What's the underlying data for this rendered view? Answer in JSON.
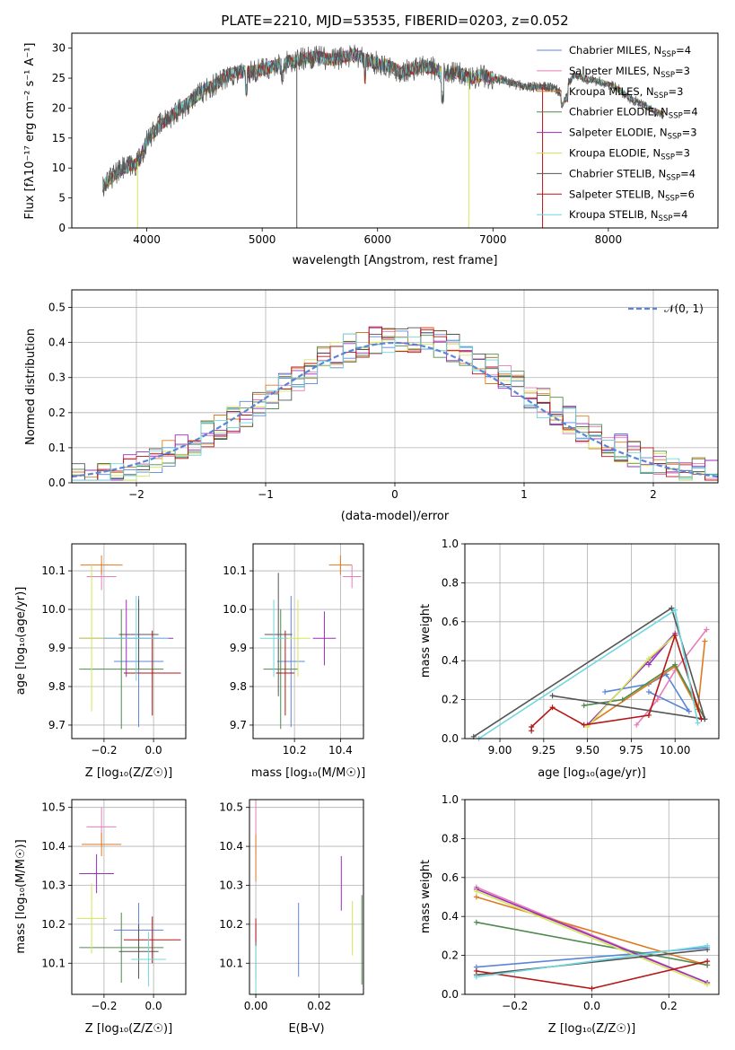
{
  "colors": {
    "chabrier_miles": "#5b86d8",
    "salpeter_miles": "#e87cb8",
    "kroupa_miles": "#e07a22",
    "chabrier_elodie": "#4f8a4f",
    "salpeter_elodie": "#9a2fb8",
    "kroupa_elodie": "#d2e65a",
    "chabrier_stelib": "#555555",
    "salpeter_stelib": "#b51616",
    "kroupa_stelib": "#6fd7de",
    "gaussian": "#5b86d8",
    "grid": "#b0b0b0"
  },
  "chart_data": [
    {
      "id": "spectrum",
      "type": "line",
      "title": "PLATE=2210, MJD=53535, FIBERID=0203, z=0.052",
      "xlabel": "wavelength [Angstrom, rest frame]",
      "ylabel": "Flux [fλ10⁻¹⁷ erg cm⁻² s⁻¹ A⁻¹]",
      "xlim": [
        3350,
        8950
      ],
      "ylim": [
        0,
        32.5
      ],
      "xticks": [
        "4000",
        "5000",
        "6000",
        "7000",
        "8000"
      ],
      "yticks": [
        "0",
        "5",
        "10",
        "15",
        "20",
        "25",
        "30"
      ],
      "grid": false,
      "legend_position": "top-right",
      "legend": [
        {
          "pre": "Chabrier MILES, N",
          "sub": "SSP",
          "post": "=4"
        },
        {
          "pre": "Salpeter MILES, N",
          "sub": "SSP",
          "post": "=3"
        },
        {
          "pre": "Kroupa MILES, N",
          "sub": "SSP",
          "post": "=3"
        },
        {
          "pre": "Chabrier ELODIE, N",
          "sub": "SSP",
          "post": "=4"
        },
        {
          "pre": "Salpeter ELODIE, N",
          "sub": "SSP",
          "post": "=3"
        },
        {
          "pre": "Kroupa ELODIE, N",
          "sub": "SSP",
          "post": "=3"
        },
        {
          "pre": "Chabrier STELIB, N",
          "sub": "SSP",
          "post": "=4"
        },
        {
          "pre": "Salpeter STELIB, N",
          "sub": "SSP",
          "post": "=6"
        },
        {
          "pre": "Kroupa STELIB, N",
          "sub": "SSP",
          "post": "=4"
        }
      ],
      "continuum": {
        "x": [
          3620,
          3700,
          3800,
          3900,
          3950,
          4000,
          4100,
          4200,
          4300,
          4400,
          4500,
          4600,
          4700,
          4800,
          4900,
          5000,
          5100,
          5200,
          5300,
          5400,
          5500,
          5600,
          5700,
          5800,
          5900,
          6000,
          6100,
          6200,
          6300,
          6400,
          6500,
          6600,
          6700,
          6800,
          6900,
          7000,
          7100,
          7200,
          7300,
          7400,
          7500,
          7600,
          7700,
          7800,
          7900,
          8000,
          8100,
          8200,
          8300,
          8400,
          8480
        ],
        "y": [
          7.0,
          8.5,
          10.0,
          10.5,
          12.0,
          14.5,
          17.0,
          18.5,
          20.0,
          21.5,
          23.0,
          24.0,
          25.5,
          26.0,
          26.0,
          26.5,
          27.0,
          27.5,
          28.0,
          28.5,
          28.5,
          28.0,
          28.5,
          29.0,
          28.0,
          27.5,
          27.0,
          26.0,
          26.5,
          27.0,
          26.5,
          25.5,
          26.0,
          25.0,
          25.5,
          25.0,
          24.5,
          24.0,
          23.5,
          23.5,
          23.5,
          22.5,
          25.5,
          25.0,
          24.5,
          24.0,
          23.0,
          21.5,
          20.5,
          19.5,
          19.0
        ]
      },
      "dips": [
        {
          "x": 3920,
          "y": 0
        },
        {
          "x": 5300,
          "y": 0
        },
        {
          "x": 6790,
          "y": 0
        },
        {
          "x": 7430,
          "y": 0
        }
      ]
    },
    {
      "id": "residuals",
      "type": "line",
      "xlabel": "(data-model)/error",
      "ylabel": "Normed distribution",
      "xlim": [
        -2.5,
        2.5
      ],
      "ylim": [
        0,
        0.55
      ],
      "xticks": [
        "−2",
        "−1",
        "0",
        "1",
        "2"
      ],
      "yticks": [
        "0.0",
        "0.1",
        "0.2",
        "0.3",
        "0.4",
        "0.5"
      ],
      "grid": true,
      "legend_position": "top-right",
      "legend": [
        "𝒩(0, 1)"
      ],
      "bin_width": 0.1,
      "bin_start": -2.5
    },
    {
      "id": "age_vs_Z",
      "type": "scatter",
      "xlabel": "Z [log₁₀(Z/Z☉)]",
      "ylabel": "age  [log₁₀(age/yr)]",
      "xlim": [
        -0.33,
        0.13
      ],
      "ylim": [
        9.665,
        10.17
      ],
      "xticks": [
        "−0.2",
        "0.0"
      ],
      "yticks": [
        "9.7",
        "9.8",
        "9.9",
        "10.0",
        "10.1"
      ],
      "grid": true,
      "points": [
        {
          "x": -0.06,
          "y": 9.865,
          "xerr": 0.1,
          "yerr": 0.17,
          "color": "chabrier_miles"
        },
        {
          "x": -0.21,
          "y": 10.085,
          "xerr": 0.06,
          "yerr": 0.035,
          "color": "salpeter_miles"
        },
        {
          "x": -0.21,
          "y": 10.115,
          "xerr": 0.085,
          "yerr": 0.025,
          "color": "kroupa_miles"
        },
        {
          "x": -0.13,
          "y": 9.845,
          "xerr": 0.17,
          "yerr": 0.155,
          "color": "chabrier_elodie"
        },
        {
          "x": -0.11,
          "y": 9.925,
          "xerr": 0.19,
          "yerr": 0.1,
          "color": "salpeter_elodie"
        },
        {
          "x": -0.25,
          "y": 9.925,
          "xerr": 0.05,
          "yerr": 0.19,
          "color": "kroupa_elodie"
        },
        {
          "x": -0.06,
          "y": 9.935,
          "xerr": 0.08,
          "yerr": 0.09,
          "color": "chabrier_stelib"
        },
        {
          "x": -0.005,
          "y": 9.835,
          "xerr": 0.115,
          "yerr": 0.11,
          "color": "salpeter_stelib"
        },
        {
          "x": -0.07,
          "y": 9.925,
          "xerr": 0.13,
          "yerr": 0.11,
          "color": "kroupa_stelib"
        }
      ]
    },
    {
      "id": "age_vs_mass",
      "type": "scatter",
      "xlabel": "mass [log₁₀(M/M☉)]",
      "ylabel": "",
      "xlim": [
        10.02,
        10.5
      ],
      "ylim": [
        9.665,
        10.17
      ],
      "xticks": [
        "10.2",
        "10.4"
      ],
      "yticks": [
        "9.7",
        "9.8",
        "9.9",
        "10.0",
        "10.1"
      ],
      "grid": true,
      "points": [
        {
          "x": 10.185,
          "y": 9.865,
          "xerr": 0.06,
          "yerr": 0.17,
          "color": "chabrier_miles"
        },
        {
          "x": 10.45,
          "y": 10.085,
          "xerr": 0.04,
          "yerr": 0.03,
          "color": "salpeter_miles"
        },
        {
          "x": 10.4,
          "y": 10.115,
          "xerr": 0.05,
          "yerr": 0.025,
          "color": "kroupa_miles"
        },
        {
          "x": 10.14,
          "y": 9.845,
          "xerr": 0.075,
          "yerr": 0.155,
          "color": "chabrier_elodie"
        },
        {
          "x": 10.33,
          "y": 9.925,
          "xerr": 0.05,
          "yerr": 0.07,
          "color": "salpeter_elodie"
        },
        {
          "x": 10.215,
          "y": 9.925,
          "xerr": 0.055,
          "yerr": 0.1,
          "color": "kroupa_elodie"
        },
        {
          "x": 10.13,
          "y": 9.935,
          "xerr": 0.06,
          "yerr": 0.16,
          "color": "chabrier_stelib"
        },
        {
          "x": 10.16,
          "y": 9.835,
          "xerr": 0.04,
          "yerr": 0.11,
          "color": "salpeter_stelib"
        },
        {
          "x": 10.11,
          "y": 9.925,
          "xerr": 0.06,
          "yerr": 0.1,
          "color": "kroupa_stelib"
        }
      ]
    },
    {
      "id": "weight_vs_age",
      "type": "line",
      "xlabel": "age  [log₁₀(age/yr)]",
      "ylabel": "mass weight",
      "xlim": [
        8.8,
        10.25
      ],
      "ylim": [
        0,
        1.0
      ],
      "xticks": [
        "9.00",
        "9.25",
        "9.50",
        "9.75",
        "10.00"
      ],
      "yticks": [
        "0.0",
        "0.2",
        "0.4",
        "0.6",
        "0.8",
        "1.0"
      ],
      "grid": true,
      "series": [
        {
          "color": "chabrier_miles",
          "x": [
            9.6,
            9.85,
            9.95,
            10.08,
            9.85
          ],
          "y": [
            0.24,
            0.28,
            0.33,
            0.14,
            0.24
          ]
        },
        {
          "color": "salpeter_miles",
          "x": [
            9.78,
            9.9,
            10.0,
            10.18
          ],
          "y": [
            0.07,
            0.2,
            0.35,
            0.56
          ]
        },
        {
          "color": "kroupa_miles",
          "x": [
            9.5,
            10.0,
            10.13,
            10.17
          ],
          "y": [
            0.07,
            0.37,
            0.15,
            0.5
          ]
        },
        {
          "color": "chabrier_elodie",
          "x": [
            9.48,
            9.7,
            10.0,
            10.17
          ],
          "y": [
            0.17,
            0.2,
            0.38,
            0.1
          ]
        },
        {
          "color": "salpeter_elodie",
          "x": [
            9.5,
            10.0,
            9.85
          ],
          "y": [
            0.07,
            0.54,
            0.38
          ]
        },
        {
          "color": "kroupa_elodie",
          "x": [
            9.5,
            9.85,
            10.0
          ],
          "y": [
            0.06,
            0.41,
            0.53
          ]
        },
        {
          "color": "chabrier_stelib",
          "x": [
            8.85,
            9.98,
            10.17,
            9.3
          ],
          "y": [
            0.01,
            0.67,
            0.1,
            0.22
          ]
        },
        {
          "color": "salpeter_stelib",
          "x": [
            9.18,
            9.18,
            9.3,
            9.48,
            9.85,
            10.0,
            10.15
          ],
          "y": [
            0.04,
            0.06,
            0.16,
            0.07,
            0.12,
            0.53,
            0.1
          ]
        },
        {
          "color": "kroupa_stelib",
          "x": [
            8.88,
            10.0,
            10.13
          ],
          "y": [
            0.0,
            0.66,
            0.08
          ]
        }
      ]
    },
    {
      "id": "mass_vs_Z",
      "type": "scatter",
      "xlabel": "Z [log₁₀(Z/Z☉)]",
      "ylabel": "mass [log₁₀(M/M☉)]",
      "xlim": [
        -0.33,
        0.13
      ],
      "ylim": [
        10.02,
        10.52
      ],
      "xticks": [
        "−0.2",
        "0.0"
      ],
      "yticks": [
        "10.1",
        "10.2",
        "10.3",
        "10.4",
        "10.5"
      ],
      "grid": true,
      "points": [
        {
          "x": -0.06,
          "y": 10.185,
          "xerr": 0.1,
          "yerr": 0.07,
          "color": "chabrier_miles"
        },
        {
          "x": -0.21,
          "y": 10.45,
          "xerr": 0.06,
          "yerr": 0.05,
          "color": "salpeter_miles"
        },
        {
          "x": -0.21,
          "y": 10.405,
          "xerr": 0.08,
          "yerr": 0.03,
          "color": "kroupa_miles"
        },
        {
          "x": -0.13,
          "y": 10.14,
          "xerr": 0.17,
          "yerr": 0.09,
          "color": "chabrier_elodie"
        },
        {
          "x": -0.23,
          "y": 10.33,
          "xerr": 0.07,
          "yerr": 0.05,
          "color": "salpeter_elodie"
        },
        {
          "x": -0.25,
          "y": 10.215,
          "xerr": 0.06,
          "yerr": 0.09,
          "color": "kroupa_elodie"
        },
        {
          "x": -0.06,
          "y": 10.13,
          "xerr": 0.08,
          "yerr": 0.07,
          "color": "chabrier_stelib"
        },
        {
          "x": -0.005,
          "y": 10.16,
          "xerr": 0.115,
          "yerr": 0.06,
          "color": "salpeter_stelib"
        },
        {
          "x": -0.02,
          "y": 10.11,
          "xerr": 0.07,
          "yerr": 0.07,
          "color": "kroupa_stelib"
        }
      ]
    },
    {
      "id": "mass_vs_ebv",
      "type": "scatter",
      "xlabel": "E(B-V)",
      "ylabel": "",
      "xlim": [
        -0.002,
        0.034
      ],
      "ylim": [
        10.02,
        10.52
      ],
      "xticks": [
        "0.00",
        "0.02"
      ],
      "yticks": [
        "10.1",
        "10.2",
        "10.3",
        "10.4",
        "10.5"
      ],
      "grid": true,
      "points": [
        {
          "x": 0.0135,
          "y": 10.16,
          "yerr": 0.095,
          "color": "chabrier_miles"
        },
        {
          "x": 0.0,
          "y": 10.45,
          "yerr": 0.07,
          "color": "salpeter_miles"
        },
        {
          "x": 0.0,
          "y": 10.37,
          "yerr": 0.06,
          "color": "kroupa_miles"
        },
        {
          "x": 0.0335,
          "y": 10.16,
          "yerr": 0.115,
          "color": "chabrier_elodie"
        },
        {
          "x": 0.027,
          "y": 10.305,
          "yerr": 0.07,
          "color": "salpeter_elodie"
        },
        {
          "x": 0.0305,
          "y": 10.19,
          "yerr": 0.07,
          "color": "kroupa_elodie"
        },
        {
          "x": 0.0,
          "y": 10.13,
          "yerr": 0.07,
          "color": "chabrier_stelib"
        },
        {
          "x": 0.0,
          "y": 10.185,
          "yerr": 0.03,
          "color": "salpeter_stelib"
        },
        {
          "x": 0.0,
          "y": 10.08,
          "yerr": 0.065,
          "color": "kroupa_stelib"
        }
      ]
    },
    {
      "id": "weight_vs_Z",
      "type": "line",
      "xlabel": "Z [log₁₀(Z/Z☉)]",
      "ylabel": "mass weight",
      "xlim": [
        -0.33,
        0.33
      ],
      "ylim": [
        0,
        1.0
      ],
      "xticks": [
        "−0.2",
        "0.0",
        "0.2"
      ],
      "yticks": [
        "0.0",
        "0.2",
        "0.4",
        "0.6",
        "0.8",
        "1.0"
      ],
      "grid": true,
      "series": [
        {
          "color": "chabrier_miles",
          "x": [
            -0.3,
            0.3
          ],
          "y": [
            0.14,
            0.24
          ]
        },
        {
          "color": "salpeter_miles",
          "x": [
            -0.3,
            0.3
          ],
          "y": [
            0.55,
            0.06
          ]
        },
        {
          "color": "kroupa_miles",
          "x": [
            -0.3,
            0.3
          ],
          "y": [
            0.5,
            0.15
          ]
        },
        {
          "color": "chabrier_elodie",
          "x": [
            -0.3,
            0.3
          ],
          "y": [
            0.37,
            0.15
          ]
        },
        {
          "color": "salpeter_elodie",
          "x": [
            -0.3,
            0.3
          ],
          "y": [
            0.54,
            0.06
          ]
        },
        {
          "color": "kroupa_elodie",
          "x": [
            -0.3,
            0.3
          ],
          "y": [
            0.53,
            0.05
          ]
        },
        {
          "color": "chabrier_stelib",
          "x": [
            -0.3,
            0.3
          ],
          "y": [
            0.1,
            0.23
          ]
        },
        {
          "color": "salpeter_stelib",
          "x": [
            -0.3,
            0.0,
            0.3
          ],
          "y": [
            0.12,
            0.03,
            0.17
          ]
        },
        {
          "color": "kroupa_stelib",
          "x": [
            -0.3,
            0.3
          ],
          "y": [
            0.09,
            0.25
          ]
        }
      ]
    }
  ]
}
